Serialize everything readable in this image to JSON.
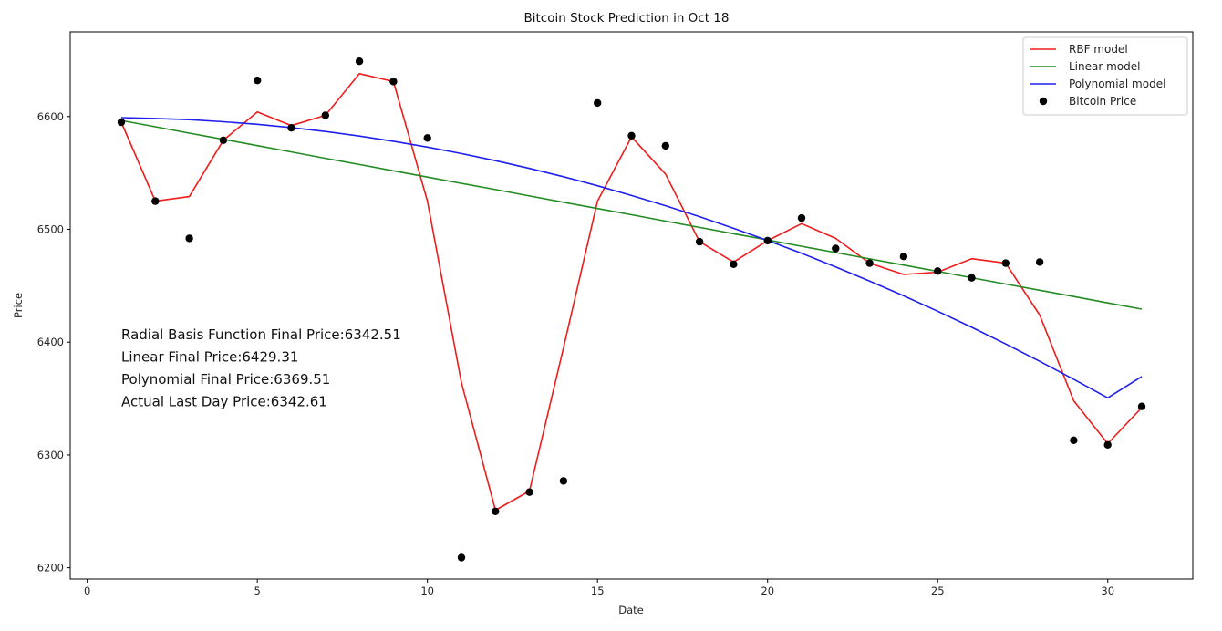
{
  "chart_data": {
    "type": "line",
    "title": "Bitcoin Stock Prediction in Oct 18",
    "xlabel": "Date",
    "ylabel": "Price",
    "xlim": [
      -0.5,
      32.5
    ],
    "ylim": [
      6190,
      6675
    ],
    "x_ticks": [
      0,
      5,
      10,
      15,
      20,
      25,
      30
    ],
    "y_ticks": [
      6200,
      6300,
      6400,
      6500,
      6600
    ],
    "grid": false,
    "legend_position": "top-right",
    "x": [
      1,
      2,
      3,
      4,
      5,
      6,
      7,
      8,
      9,
      10,
      11,
      12,
      13,
      14,
      15,
      16,
      17,
      18,
      19,
      20,
      21,
      22,
      23,
      24,
      25,
      26,
      27,
      28,
      29,
      30,
      31
    ],
    "series": [
      {
        "name": "RBF model",
        "kind": "line",
        "color": "#ee1c1c",
        "values": [
          6595,
          6525,
          6529,
          6579,
          6604,
          6592,
          6601,
          6638,
          6631,
          6525,
          6364,
          6251,
          6268,
          6395,
          6525,
          6582,
          6549,
          6489,
          6471,
          6490,
          6505,
          6492,
          6470,
          6460,
          6462,
          6474,
          6470,
          6424,
          6348,
          6310,
          6342
        ]
      },
      {
        "name": "Linear model",
        "kind": "line",
        "color": "#228b22",
        "values": [
          6596.5,
          6590.9,
          6585.3,
          6579.8,
          6574.2,
          6568.6,
          6563.0,
          6557.5,
          6551.9,
          6546.3,
          6540.7,
          6535.2,
          6529.6,
          6524.0,
          6518.4,
          6512.9,
          6507.3,
          6501.7,
          6496.1,
          6490.6,
          6485.0,
          6479.4,
          6473.8,
          6468.3,
          6462.7,
          6457.1,
          6451.5,
          6446.0,
          6440.4,
          6434.8,
          6429.3
        ]
      },
      {
        "name": "Polynomial model",
        "kind": "line",
        "color": "#1f1fee",
        "values": [
          6599,
          6598.3,
          6597.2,
          6595.4,
          6593.1,
          6590.2,
          6586.7,
          6582.7,
          6578.1,
          6572.9,
          6567.2,
          6560.9,
          6554.0,
          6546.6,
          6538.6,
          6530.0,
          6520.9,
          6511.2,
          6500.9,
          6490.1,
          6478.7,
          6466.7,
          6454.2,
          6441.1,
          6427.4,
          6413.2,
          6398.4,
          6383.0,
          6367.1,
          6350.6,
          6369.5
        ]
      },
      {
        "name": "Bitcoin Price",
        "kind": "scatter",
        "color": "#000000",
        "values": [
          6595,
          6525,
          6492,
          6579,
          6632,
          6590,
          6601,
          6649,
          6631,
          6581,
          6209,
          6250,
          6267,
          6277,
          6612,
          6583,
          6574,
          6489,
          6469,
          6490,
          6510,
          6483,
          6470,
          6476,
          6463,
          6457,
          6470,
          6471,
          6313,
          6309,
          6343
        ]
      }
    ],
    "annotations": [
      "Radial Basis Function Final Price:6342.51",
      "Linear Final Price:6429.31",
      "Polynomial Final Price:6369.51",
      "Actual Last Day Price:6342.61"
    ]
  }
}
